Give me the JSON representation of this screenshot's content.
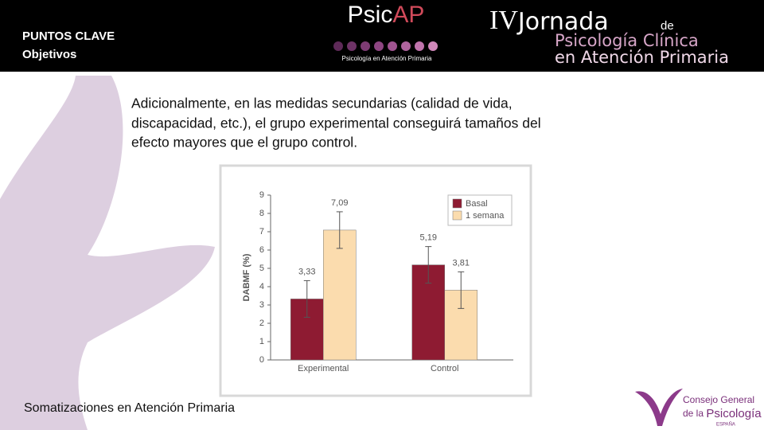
{
  "header": {
    "section": "PUNTOS CLAVE",
    "subsection": "Objetivos",
    "logo": {
      "name_a": "Psic",
      "name_b": "AP",
      "tagline": "Psicología en Atención Primaria"
    },
    "event": {
      "number": "IV",
      "name": "Jornada",
      "connector": "de",
      "line1": "Psicología Clínica",
      "line2": "en Atención Primaria"
    }
  },
  "body": {
    "text": [
      "Adicionalmente, en las medidas secundarias (calidad de vida,",
      "discapacidad, etc.), el grupo experimental conseguirá tamaños del",
      "efecto mayores que el grupo control."
    ]
  },
  "chart_data": {
    "type": "bar",
    "ylabel": "DABMF (%)",
    "categories": [
      "Experimental",
      "Control"
    ],
    "series": [
      {
        "name": "Basal",
        "color": "#8e1b32",
        "values": [
          3.33,
          5.19
        ],
        "value_labels": [
          "3,33",
          "5,19"
        ],
        "errors": [
          1,
          1
        ]
      },
      {
        "name": "1 semana",
        "color": "#fbdcae",
        "values": [
          7.09,
          3.81
        ],
        "value_labels": [
          "7,09",
          "3,81"
        ],
        "errors": [
          1,
          1
        ]
      }
    ],
    "ylim": [
      0,
      9
    ],
    "yticks": [
      0,
      1,
      2,
      3,
      4,
      5,
      6,
      7,
      8,
      9
    ],
    "legend": "upper right"
  },
  "footer": {
    "title": "Somatizaciones en Atención Primaria",
    "org": {
      "line1": "Consejo General",
      "line2a": "de la",
      "line2b": "Psicología",
      "country": "ESPAÑA"
    }
  }
}
